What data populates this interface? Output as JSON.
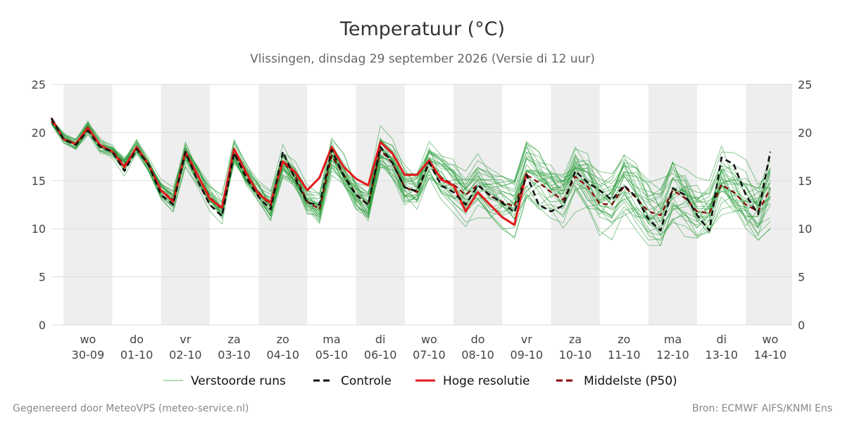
{
  "chart_data": {
    "type": "line",
    "title": "Temperatuur (°C)",
    "subtitle": "Vlissingen, dinsdag 29 september 2026 (Versie di 12 uur)",
    "ylim": [
      0,
      25
    ],
    "yticks": [
      0,
      5,
      10,
      15,
      20,
      25
    ],
    "grid": true,
    "day_labels": [
      {
        "day": "wo",
        "date": "30-09"
      },
      {
        "day": "do",
        "date": "01-10"
      },
      {
        "day": "vr",
        "date": "02-10"
      },
      {
        "day": "za",
        "date": "03-10"
      },
      {
        "day": "zo",
        "date": "04-10"
      },
      {
        "day": "ma",
        "date": "05-10"
      },
      {
        "day": "di",
        "date": "06-10"
      },
      {
        "day": "wo",
        "date": "07-10"
      },
      {
        "day": "do",
        "date": "08-10"
      },
      {
        "day": "vr",
        "date": "09-10"
      },
      {
        "day": "za",
        "date": "10-10"
      },
      {
        "day": "zo",
        "date": "11-10"
      },
      {
        "day": "ma",
        "date": "12-10"
      },
      {
        "day": "di",
        "date": "13-10"
      },
      {
        "day": "wo",
        "date": "14-10"
      }
    ],
    "x_start": 29.75,
    "x_step": 0.25,
    "series": [
      {
        "name": "Hoge resolutie",
        "color": "#e41a1c",
        "values": [
          21.5,
          19.3,
          18.8,
          20.5,
          18.7,
          18.0,
          16.4,
          18.5,
          16.6,
          14.0,
          12.8,
          18.0,
          15.6,
          13.1,
          12.2,
          18.3,
          15.8,
          13.6,
          12.7,
          17.0,
          15.9,
          14.0,
          15.3,
          18.5,
          16.4,
          15.2,
          14.5,
          19.0,
          17.8,
          15.6,
          15.6,
          17.1,
          15.1,
          14.5,
          11.8,
          13.8,
          12.5,
          11.2,
          10.4,
          15.8
        ]
      },
      {
        "name": "Controle",
        "color": "#111111",
        "values": [
          21.5,
          19.3,
          18.7,
          20.2,
          18.5,
          18.0,
          16.0,
          18.3,
          16.6,
          13.5,
          12.5,
          18.0,
          15.0,
          12.5,
          11.3,
          17.9,
          15.3,
          13.3,
          12.0,
          18.0,
          15.2,
          12.7,
          12.5,
          18.2,
          15.5,
          13.5,
          12.5,
          18.5,
          16.8,
          14.3,
          13.9,
          16.9,
          14.5,
          13.8,
          12.5,
          14.5,
          13.5,
          12.7,
          11.7,
          15.6,
          12.5,
          11.8,
          12.4,
          16.0,
          14.8,
          14.0,
          13.0,
          14.5,
          13.3,
          11.0,
          9.8,
          14.2,
          13.5,
          11.4,
          9.8,
          17.4,
          16.7,
          13.5,
          11.5,
          18.0
        ]
      },
      {
        "name": "Middelste (P50)",
        "color": "#8b0000",
        "values": [
          21.2,
          19.4,
          18.8,
          20.6,
          18.6,
          18.1,
          16.6,
          18.4,
          16.5,
          14.0,
          13.0,
          17.8,
          15.5,
          13.3,
          12.0,
          17.8,
          15.5,
          13.8,
          12.4,
          17.0,
          15.5,
          12.8,
          12.0,
          17.6,
          15.6,
          13.6,
          12.5,
          18.2,
          16.8,
          14.3,
          13.8,
          16.8,
          15.3,
          14.6,
          13.5,
          14.6,
          13.4,
          12.8,
          12.3,
          15.6,
          14.8,
          13.8,
          13.0,
          15.4,
          14.4,
          12.6,
          12.5,
          14.4,
          13.2,
          11.8,
          11.4,
          14.0,
          13.2,
          11.8,
          11.6,
          14.6,
          13.8,
          12.5,
          11.8,
          14.1
        ]
      }
    ],
    "legend": [
      {
        "label": "Verstoorde runs",
        "style": "thin",
        "color": "#3aa745"
      },
      {
        "label": "Controle",
        "style": "dashed",
        "color": "#111111"
      },
      {
        "label": "Hoge resolutie",
        "style": "solid",
        "color": "#e41a1c"
      },
      {
        "label": "Middelste (P50)",
        "style": "dashed",
        "color": "#8b0000"
      }
    ],
    "legend_position": "bottom",
    "ensemble_color": "#2a9d3a",
    "ensemble_count": 30,
    "ensemble_seed": 7,
    "ensemble_spread_start": 0.7,
    "ensemble_spread_end": 4.2
  },
  "footer": {
    "left": "Gegenereerd door MeteoVPS (meteo-service.nl)",
    "right": "Bron: ECMWF AIFS/KNMI Ens"
  }
}
